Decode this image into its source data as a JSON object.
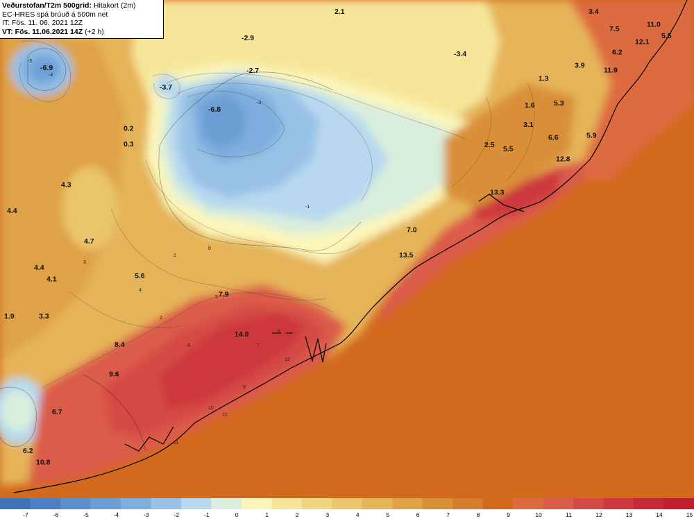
{
  "header": {
    "title": "Veðurstofan/T2m 500grid:",
    "product": "Hitakort (2m)",
    "model": "EC-HRES spá brúuð á 500m net",
    "init": "IT: Fös. 11. 06. 2021 12Z",
    "valid": "VT: Fös. 11.06.2021 14Z",
    "lead": "(+2 h)"
  },
  "colors": {
    "sea": "#d26a1d",
    "coast": "#000000"
  },
  "legend": {
    "bins": [
      {
        "label": "-7",
        "color": "#3f73b8"
      },
      {
        "label": "-6",
        "color": "#4d80c2"
      },
      {
        "label": "-5",
        "color": "#5b8ecb"
      },
      {
        "label": "-4",
        "color": "#6b9ed5"
      },
      {
        "label": "-3",
        "color": "#7eaedd"
      },
      {
        "label": "-2",
        "color": "#98c1e6"
      },
      {
        "label": "-1",
        "color": "#b7d8ee"
      },
      {
        "label": "0",
        "color": "#d9eedd"
      },
      {
        "label": "1",
        "color": "#fbf5b9"
      },
      {
        "label": "2",
        "color": "#f6e69a"
      },
      {
        "label": "3",
        "color": "#f0d680"
      },
      {
        "label": "4",
        "color": "#eac56b"
      },
      {
        "label": "5",
        "color": "#e5b458"
      },
      {
        "label": "6",
        "color": "#dfa247"
      },
      {
        "label": "7",
        "color": "#d98f38"
      },
      {
        "label": "8",
        "color": "#d67c2d"
      },
      {
        "label": "9",
        "color": "#d26a1d"
      },
      {
        "label": "10",
        "color": "#de6b40"
      },
      {
        "label": "11",
        "color": "#db5c4a"
      },
      {
        "label": "12",
        "color": "#d44a45"
      },
      {
        "label": "13",
        "color": "#cd383e"
      },
      {
        "label": "14",
        "color": "#c52933"
      },
      {
        "label": "15",
        "color": "#bf1f2c"
      }
    ]
  },
  "values": [
    {
      "text": "-6.9",
      "x": 0.058,
      "y": 0.135
    },
    {
      "text": "-2.9",
      "x": 0.348,
      "y": 0.075
    },
    {
      "text": "2.1",
      "x": 0.482,
      "y": 0.022
    },
    {
      "text": "3.4",
      "x": 0.848,
      "y": 0.022
    },
    {
      "text": "11.0",
      "x": 0.932,
      "y": 0.048
    },
    {
      "text": "7.5",
      "x": 0.878,
      "y": 0.057
    },
    {
      "text": "5.5",
      "x": 0.953,
      "y": 0.071
    },
    {
      "text": "12.1",
      "x": 0.915,
      "y": 0.083
    },
    {
      "text": "6.2",
      "x": 0.882,
      "y": 0.104
    },
    {
      "text": "-3.4",
      "x": 0.654,
      "y": 0.107
    },
    {
      "text": "-2.7",
      "x": 0.355,
      "y": 0.141
    },
    {
      "text": "3.9",
      "x": 0.828,
      "y": 0.13
    },
    {
      "text": "11.9",
      "x": 0.87,
      "y": 0.14
    },
    {
      "text": "-3.7",
      "x": 0.23,
      "y": 0.174
    },
    {
      "text": "1.3",
      "x": 0.776,
      "y": 0.157
    },
    {
      "text": "-6.8",
      "x": 0.3,
      "y": 0.219
    },
    {
      "text": "1.6",
      "x": 0.756,
      "y": 0.21
    },
    {
      "text": "5.3",
      "x": 0.798,
      "y": 0.206
    },
    {
      "text": "3.1",
      "x": 0.754,
      "y": 0.249
    },
    {
      "text": "0.2",
      "x": 0.178,
      "y": 0.257
    },
    {
      "text": "6.6",
      "x": 0.79,
      "y": 0.275
    },
    {
      "text": "5.9",
      "x": 0.845,
      "y": 0.271
    },
    {
      "text": "0.3",
      "x": 0.178,
      "y": 0.288
    },
    {
      "text": "2.5",
      "x": 0.698,
      "y": 0.29
    },
    {
      "text": "5.5",
      "x": 0.725,
      "y": 0.298
    },
    {
      "text": "12.8",
      "x": 0.801,
      "y": 0.318
    },
    {
      "text": "4.3",
      "x": 0.088,
      "y": 0.37
    },
    {
      "text": "13.3",
      "x": 0.706,
      "y": 0.385
    },
    {
      "text": "4.4",
      "x": 0.01,
      "y": 0.422
    },
    {
      "text": "7.0",
      "x": 0.586,
      "y": 0.46
    },
    {
      "text": "4.7",
      "x": 0.121,
      "y": 0.483
    },
    {
      "text": "13.5",
      "x": 0.575,
      "y": 0.511
    },
    {
      "text": "4.4",
      "x": 0.049,
      "y": 0.536
    },
    {
      "text": "5.6",
      "x": 0.194,
      "y": 0.553
    },
    {
      "text": "4.1",
      "x": 0.067,
      "y": 0.559
    },
    {
      "text": "7.9",
      "x": 0.315,
      "y": 0.59
    },
    {
      "text": "1.9",
      "x": 0.006,
      "y": 0.634
    },
    {
      "text": "3.3",
      "x": 0.056,
      "y": 0.634
    },
    {
      "text": "14.0",
      "x": 0.338,
      "y": 0.67
    },
    {
      "text": "8.4",
      "x": 0.165,
      "y": 0.691
    },
    {
      "text": "9.6",
      "x": 0.157,
      "y": 0.75
    },
    {
      "text": "6.7",
      "x": 0.075,
      "y": 0.826
    },
    {
      "text": "6.2",
      "x": 0.033,
      "y": 0.904
    },
    {
      "text": "10.8",
      "x": 0.052,
      "y": 0.927
    }
  ],
  "contour_labels": [
    "-4",
    "-5",
    "-3",
    "-1",
    "0",
    "1",
    "2",
    "3",
    "4",
    "5",
    "6",
    "7",
    "8",
    "9",
    "10",
    "11",
    "12",
    "13"
  ]
}
